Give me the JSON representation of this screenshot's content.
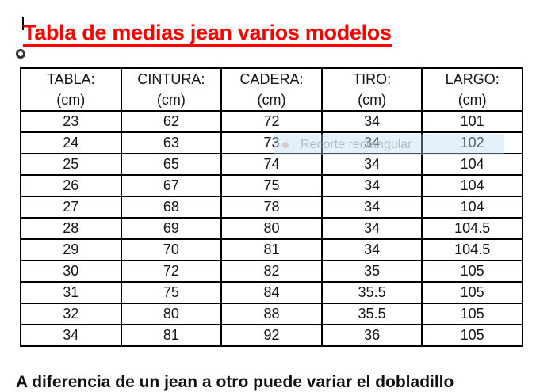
{
  "title": {
    "text": "Tabla de medias jean varios modelos",
    "color": "#ff0000"
  },
  "table": {
    "headers": [
      {
        "label": "TABLA:",
        "unit": "(cm)"
      },
      {
        "label": "CINTURA:",
        "unit": "(cm)"
      },
      {
        "label": "CADERA:",
        "unit": "(cm)"
      },
      {
        "label": "TIRO:",
        "unit": "(cm)"
      },
      {
        "label": "LARGO:",
        "unit": "(cm)"
      }
    ],
    "rows": [
      [
        "23",
        "62",
        "72",
        "34",
        "101"
      ],
      [
        "24",
        "63",
        "73",
        "34",
        "102"
      ],
      [
        "25",
        "65",
        "74",
        "34",
        "104"
      ],
      [
        "26",
        "67",
        "75",
        "34",
        "104"
      ],
      [
        "27",
        "68",
        "78",
        "34",
        "104"
      ],
      [
        "28",
        "69",
        "80",
        "34",
        "104.5"
      ],
      [
        "29",
        "70",
        "81",
        "34",
        "104.5"
      ],
      [
        "30",
        "72",
        "82",
        "35",
        "105"
      ],
      [
        "31",
        "75",
        "84",
        "35.5",
        "105"
      ],
      [
        "32",
        "80",
        "88",
        "35.5",
        "105"
      ],
      [
        "34",
        "81",
        "92",
        "36",
        "105"
      ]
    ],
    "border_color": "#000000",
    "text_color": "#141414"
  },
  "snip_overlay": {
    "label": "Recorte rectangular",
    "band_color": "#bbd9f3",
    "text_color": "#a3b0bd",
    "dot_color": "#cda8a8"
  },
  "footer": {
    "clipped_text": "A diferencia de un jean a otro puede variar el dobladillo"
  }
}
